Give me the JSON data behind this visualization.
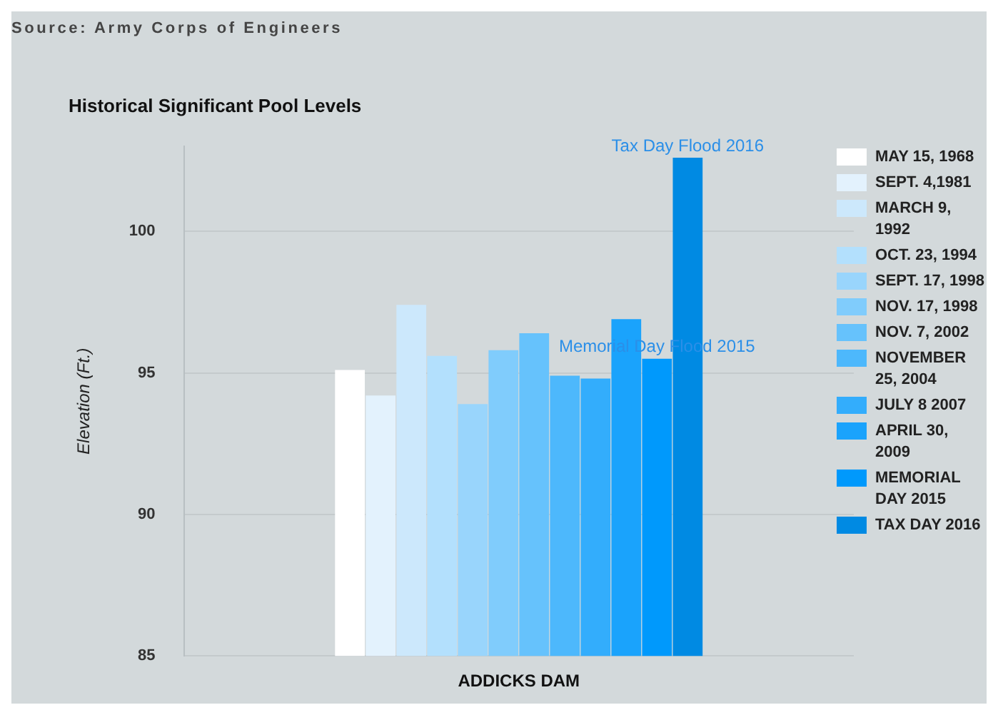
{
  "chart_data": {
    "type": "bar",
    "title": "Historical Significant Pool Levels",
    "ylabel": "Elevation (Ft.)",
    "categories": [
      "ADDICKS DAM"
    ],
    "series": [
      {
        "name": "MAY 15, 1968",
        "color": "#ffffff",
        "values": [
          95.1
        ]
      },
      {
        "name": "SEPT. 4,1981",
        "color": "#e3f2fd",
        "values": [
          94.2
        ]
      },
      {
        "name": "MARCH 9, 1992",
        "color": "#cce8fc",
        "values": [
          97.4
        ]
      },
      {
        "name": "OCT. 23, 1994",
        "color": "#b3e0fd",
        "values": [
          95.6
        ]
      },
      {
        "name": "SEPT. 17, 1998",
        "color": "#99d5fc",
        "values": [
          93.9
        ]
      },
      {
        "name": "NOV. 17, 1998",
        "color": "#80ccfc",
        "values": [
          95.8
        ]
      },
      {
        "name": "NOV. 7, 2002",
        "color": "#66c2fc",
        "values": [
          96.4
        ]
      },
      {
        "name": "NOVEMBER 25, 2004",
        "color": "#4db8fc",
        "values": [
          94.9
        ]
      },
      {
        "name": "JULY 8 2007",
        "color": "#33adfc",
        "values": [
          94.8
        ]
      },
      {
        "name": "APRIL 30, 2009",
        "color": "#1aa3fc",
        "values": [
          96.9
        ]
      },
      {
        "name": "MEMORIAL DAY 2015",
        "color": "#0099fc",
        "values": [
          95.5
        ]
      },
      {
        "name": "TAX DAY 2016",
        "color": "#008ae3",
        "values": [
          102.6
        ]
      }
    ],
    "ylim": [
      85,
      103
    ],
    "yticks": [
      85,
      90,
      95,
      100
    ],
    "grid": "y",
    "legend": "right",
    "annotations": [
      "Source: Army Corps of Engineers",
      {
        "text": "Memorial Day Flood 2015",
        "y": 95.5
      },
      {
        "text": "Tax Day Flood 2016",
        "y": 102.6
      }
    ]
  }
}
